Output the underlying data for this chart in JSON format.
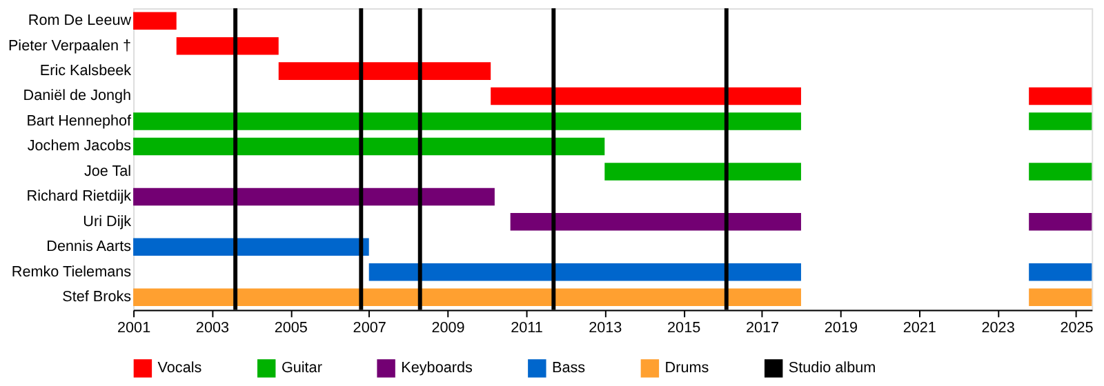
{
  "chart_data": {
    "type": "bar",
    "orientation": "horizontal",
    "categories": [
      "Rom De Leeuw",
      "Pieter Verpaalen †",
      "Eric Kalsbeek",
      "Daniël de Jongh",
      "Bart Hennephof",
      "Jochem Jacobs",
      "Joe Tal",
      "Richard Rietdijk",
      "Uri Dijk",
      "Dennis Aarts",
      "Remko Tielemans",
      "Stef Broks"
    ],
    "series": [
      {
        "name": "Vocals",
        "color": "#ff0000",
        "base": [
          2001,
          2002.1,
          2004.7,
          2010.1,
          null,
          null,
          null,
          null,
          null,
          null,
          null,
          null
        ],
        "values": [
          1.1,
          2.6,
          5.4,
          7.9,
          null,
          null,
          null,
          null,
          null,
          null,
          null,
          null
        ]
      },
      {
        "name": "Guitar",
        "color": "#00b200",
        "base": [
          null,
          null,
          null,
          null,
          2001,
          2001,
          2013,
          null,
          null,
          null,
          null,
          null
        ],
        "values": [
          null,
          null,
          null,
          null,
          17,
          12,
          5,
          null,
          null,
          null,
          null,
          null
        ]
      },
      {
        "name": "Keyboards",
        "color": "#730073",
        "base": [
          null,
          null,
          null,
          null,
          null,
          null,
          null,
          2001,
          2010.6,
          null,
          null,
          null
        ],
        "values": [
          null,
          null,
          null,
          null,
          null,
          null,
          null,
          9.2,
          7.4,
          null,
          null,
          null
        ]
      },
      {
        "name": "Bass",
        "color": "#0066cc",
        "base": [
          null,
          null,
          null,
          null,
          null,
          null,
          null,
          null,
          null,
          2001,
          2007,
          null
        ],
        "values": [
          null,
          null,
          null,
          null,
          null,
          null,
          null,
          null,
          null,
          6,
          11,
          null
        ]
      },
      {
        "name": "Drums",
        "color": "#ffa030",
        "base": [
          null,
          null,
          null,
          null,
          null,
          null,
          null,
          null,
          null,
          null,
          null,
          2001
        ],
        "values": [
          null,
          null,
          null,
          null,
          null,
          null,
          null,
          null,
          null,
          null,
          null,
          17
        ]
      },
      {
        "color": "#ff0000",
        "base": [
          null,
          null,
          null,
          2023.8,
          null,
          null,
          null,
          null,
          null,
          null,
          null,
          null
        ],
        "values": [
          null,
          null,
          null,
          1.6,
          null,
          null,
          null,
          null,
          null,
          null,
          null,
          null
        ]
      },
      {
        "color": "#00b200",
        "base": [
          null,
          null,
          null,
          null,
          2023.8,
          null,
          2023.8,
          null,
          null,
          null,
          null,
          null
        ],
        "values": [
          null,
          null,
          null,
          null,
          1.6,
          null,
          1.6,
          null,
          null,
          null,
          null,
          null
        ]
      },
      {
        "color": "#730073",
        "base": [
          null,
          null,
          null,
          null,
          null,
          null,
          null,
          null,
          2023.8,
          null,
          null,
          null
        ],
        "values": [
          null,
          null,
          null,
          null,
          null,
          null,
          null,
          null,
          1.6,
          null,
          null,
          null
        ]
      },
      {
        "color": "#0066cc",
        "base": [
          null,
          null,
          null,
          null,
          null,
          null,
          null,
          null,
          null,
          null,
          2023.8,
          null
        ],
        "values": [
          null,
          null,
          null,
          null,
          null,
          null,
          null,
          null,
          null,
          null,
          1.6,
          null
        ]
      },
      {
        "color": "#ffa030",
        "base": [
          null,
          null,
          null,
          null,
          null,
          null,
          null,
          null,
          null,
          null,
          null,
          2023.8
        ],
        "values": [
          null,
          null,
          null,
          null,
          null,
          null,
          null,
          null,
          null,
          null,
          null,
          1.6
        ]
      }
    ],
    "ref_lines": [
      {
        "axis": "x",
        "value": 2003.6,
        "label": "Studio album",
        "color": "#000000"
      },
      {
        "axis": "x",
        "value": 2006.8,
        "color": "#000000"
      },
      {
        "axis": "x",
        "value": 2008.3,
        "color": "#000000"
      },
      {
        "axis": "x",
        "value": 2011.7,
        "color": "#000000"
      },
      {
        "axis": "x",
        "value": 2016.1,
        "color": "#000000"
      }
    ],
    "xlim": [
      2001,
      2025.4
    ],
    "xticks": [
      2001,
      2003,
      2005,
      2007,
      2009,
      2011,
      2013,
      2015,
      2017,
      2019,
      2021,
      2023,
      2025
    ],
    "grid": false,
    "legend": "bottom"
  }
}
